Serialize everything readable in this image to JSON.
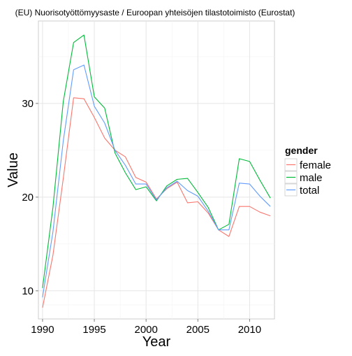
{
  "chart_data": {
    "type": "line",
    "title": "(EU) Nuorisotyöttömyysaste / Euroopan yhteisöjen tilastotoimisto (Eurostat)",
    "xlabel": "Year",
    "ylabel": "Value",
    "xlim": [
      1989.6,
      2012.4
    ],
    "ylim": [
      7.0,
      38.8
    ],
    "x_ticks": [
      1990,
      1995,
      2000,
      2005,
      2010
    ],
    "x_tick_labels": [
      "1990",
      "1995",
      "2000",
      "2005",
      "2010"
    ],
    "y_ticks": [
      10,
      20,
      30
    ],
    "y_tick_labels": [
      "10",
      "20",
      "30"
    ],
    "grid": true,
    "legend": {
      "title": "gender",
      "placement": "right",
      "entries": [
        "female",
        "male",
        "total"
      ]
    },
    "x": [
      1990,
      1991,
      1992,
      1993,
      1994,
      1995,
      1996,
      1997,
      1998,
      1999,
      2000,
      2001,
      2002,
      2003,
      2004,
      2005,
      2006,
      2007,
      2008,
      2009,
      2010,
      2011,
      2012
    ],
    "series": [
      {
        "name": "female",
        "color": "#F8766D",
        "values": [
          8.2,
          13.8,
          22.0,
          30.6,
          30.5,
          28.5,
          26.3,
          25.0,
          24.3,
          22.1,
          21.6,
          19.8,
          20.9,
          21.6,
          19.4,
          19.5,
          18.3,
          16.5,
          15.8,
          19.0,
          19.0,
          18.4,
          18.0
        ]
      },
      {
        "name": "male",
        "color": "#00BA38",
        "values": [
          10.3,
          18.9,
          30.2,
          36.5,
          37.3,
          30.7,
          29.5,
          24.7,
          22.6,
          20.8,
          21.1,
          19.6,
          21.2,
          21.9,
          22.0,
          20.5,
          18.9,
          16.5,
          17.1,
          24.1,
          23.8,
          21.8,
          19.9
        ]
      },
      {
        "name": "total",
        "color": "#619CFF",
        "values": [
          9.3,
          16.3,
          26.0,
          33.6,
          34.1,
          29.7,
          27.9,
          25.0,
          23.4,
          21.4,
          21.4,
          19.7,
          21.0,
          21.7,
          20.7,
          20.1,
          18.5,
          16.5,
          16.5,
          21.5,
          21.4,
          20.1,
          19.0
        ]
      }
    ]
  }
}
